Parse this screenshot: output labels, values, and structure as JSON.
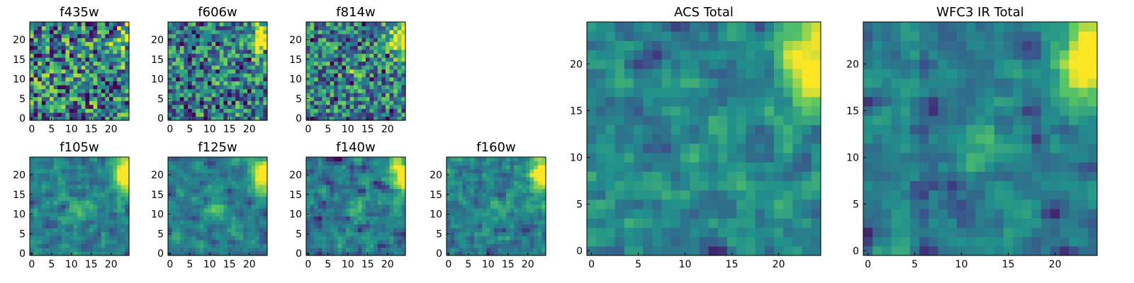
{
  "chart_data": {
    "type": "heatmap",
    "colormap": "viridis",
    "colormap_stops": [
      "#440154",
      "#3b528b",
      "#21918c",
      "#5ec962",
      "#fde725"
    ],
    "grid_size": 25,
    "grid": false,
    "panels": [
      {
        "id": "f435w",
        "title": "f435w",
        "xlim": [
          0,
          24
        ],
        "ylim": [
          0,
          24
        ],
        "xticks": [
          "0",
          "5",
          "10",
          "15",
          "20"
        ],
        "yticks": [
          "0",
          "5",
          "10",
          "15",
          "20"
        ],
        "noise": 0.55,
        "source_strength": 0.45,
        "central_blob": 0.05,
        "low_floor": 0.35,
        "seed": 11
      },
      {
        "id": "f606w",
        "title": "f606w",
        "xlim": [
          0,
          24
        ],
        "ylim": [
          0,
          24
        ],
        "xticks": [
          "0",
          "5",
          "10",
          "15",
          "20"
        ],
        "yticks": [
          "0",
          "5",
          "10",
          "15",
          "20"
        ],
        "noise": 0.45,
        "source_strength": 0.7,
        "central_blob": 0.05,
        "low_floor": 0.25,
        "seed": 23
      },
      {
        "id": "f814w",
        "title": "f814w",
        "xlim": [
          0,
          24
        ],
        "ylim": [
          0,
          24
        ],
        "xticks": [
          "0",
          "5",
          "10",
          "15",
          "20"
        ],
        "yticks": [
          "0",
          "5",
          "10",
          "15",
          "20"
        ],
        "noise": 0.45,
        "source_strength": 0.7,
        "central_blob": 0.2,
        "low_floor": 0.2,
        "seed": 37
      },
      {
        "id": "f105w",
        "title": "f105w",
        "xlim": [
          0,
          24
        ],
        "ylim": [
          0,
          24
        ],
        "xticks": [
          "0",
          "5",
          "10",
          "15",
          "20"
        ],
        "yticks": [
          "0",
          "5",
          "10",
          "15",
          "20"
        ],
        "noise": 0.3,
        "source_strength": 0.85,
        "central_blob": 0.3,
        "low_floor": 0.25,
        "seed": 41
      },
      {
        "id": "f125w",
        "title": "f125w",
        "xlim": [
          0,
          24
        ],
        "ylim": [
          0,
          24
        ],
        "xticks": [
          "0",
          "5",
          "10",
          "15",
          "20"
        ],
        "yticks": [
          "0",
          "5",
          "10",
          "15",
          "20"
        ],
        "noise": 0.3,
        "source_strength": 0.85,
        "central_blob": 0.35,
        "low_floor": 0.3,
        "seed": 53
      },
      {
        "id": "f140w",
        "title": "f140w",
        "xlim": [
          0,
          24
        ],
        "ylim": [
          0,
          24
        ],
        "xticks": [
          "0",
          "5",
          "10",
          "15",
          "20"
        ],
        "yticks": [
          "0",
          "5",
          "10",
          "15",
          "20"
        ],
        "noise": 0.3,
        "source_strength": 0.85,
        "central_blob": 0.3,
        "low_floor": 0.3,
        "seed": 67
      },
      {
        "id": "f160w",
        "title": "f160w",
        "xlim": [
          0,
          24
        ],
        "ylim": [
          0,
          24
        ],
        "xticks": [
          "0",
          "5",
          "10",
          "15",
          "20"
        ],
        "yticks": [
          "0",
          "5",
          "10",
          "15",
          "20"
        ],
        "noise": 0.35,
        "source_strength": 0.85,
        "central_blob": 0.25,
        "low_floor": 0.25,
        "seed": 79
      },
      {
        "id": "acs-total",
        "title": "ACS Total",
        "xlim": [
          0,
          24
        ],
        "ylim": [
          0,
          24
        ],
        "xticks": [
          "0",
          "5",
          "10",
          "15",
          "20"
        ],
        "yticks": [
          "0",
          "5",
          "10",
          "15",
          "20"
        ],
        "noise": 0.35,
        "source_strength": 0.75,
        "central_blob": 0.15,
        "low_floor": 0.15,
        "seed": 97
      },
      {
        "id": "wfc3-ir-total",
        "title": "WFC3 IR Total",
        "xlim": [
          0,
          24
        ],
        "ylim": [
          0,
          24
        ],
        "xticks": [
          "0",
          "5",
          "10",
          "15",
          "20"
        ],
        "yticks": [
          "0",
          "5",
          "10",
          "15",
          "20"
        ],
        "noise": 0.28,
        "source_strength": 0.9,
        "central_blob": 0.3,
        "low_floor": 0.3,
        "seed": 101
      }
    ]
  }
}
